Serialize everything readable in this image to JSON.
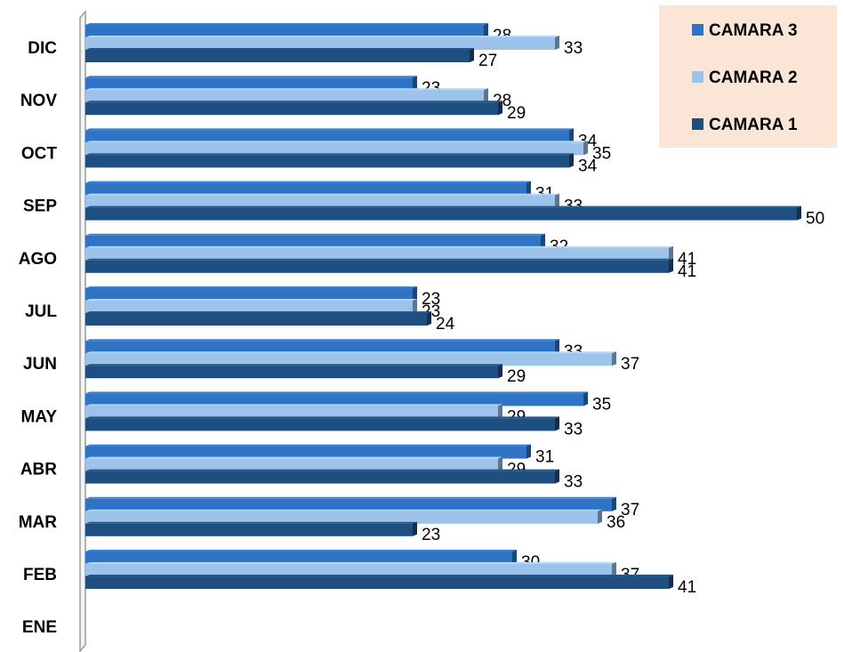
{
  "chart_data": {
    "type": "bar",
    "orientation": "horizontal",
    "categories": [
      "DIC",
      "NOV",
      "OCT",
      "SEP",
      "AGO",
      "JUL",
      "JUN",
      "MAY",
      "ABR",
      "MAR",
      "FEB",
      "ENE"
    ],
    "series": [
      {
        "name": "CAMARA 3",
        "color": "#2F74C4",
        "values": [
          28,
          23,
          34,
          31,
          32,
          23,
          33,
          35,
          31,
          37,
          30,
          null
        ]
      },
      {
        "name": "CAMARA 2",
        "color": "#9DC3EB",
        "values": [
          33,
          28,
          35,
          33,
          41,
          23,
          37,
          29,
          29,
          36,
          37,
          null
        ]
      },
      {
        "name": "CAMARA 1",
        "color": "#1F4E80",
        "values": [
          27,
          29,
          34,
          50,
          41,
          24,
          29,
          33,
          33,
          23,
          41,
          null
        ]
      }
    ],
    "xlim": [
      0,
      50
    ],
    "grid": false,
    "legend_position": "top-right",
    "legend_background": "#FBE5D6"
  }
}
